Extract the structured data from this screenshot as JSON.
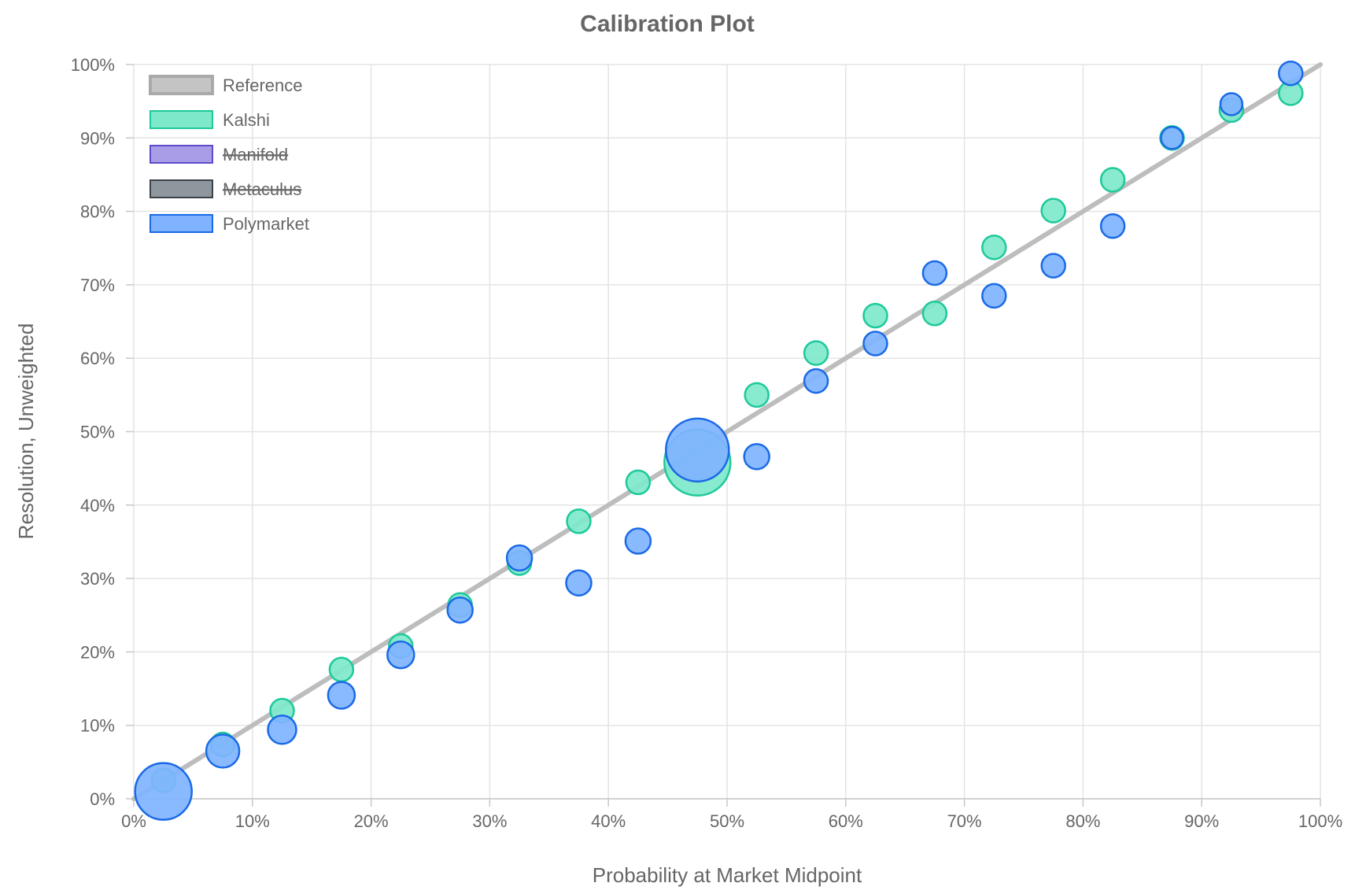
{
  "chart_data": {
    "type": "scatter",
    "title": "Calibration Plot",
    "xlabel": "Probability at Market Midpoint",
    "ylabel": "Resolution, Unweighted",
    "xlim": [
      0,
      100
    ],
    "ylim": [
      0,
      100
    ],
    "x_ticks": [
      "0%",
      "10%",
      "20%",
      "30%",
      "40%",
      "50%",
      "60%",
      "70%",
      "80%",
      "90%",
      "100%"
    ],
    "y_ticks": [
      "0%",
      "10%",
      "20%",
      "30%",
      "40%",
      "50%",
      "60%",
      "70%",
      "80%",
      "90%",
      "100%"
    ],
    "grid": true,
    "legend_position": "top-left",
    "legend": [
      {
        "name": "Reference",
        "fill": "#c4c4c4",
        "stroke": "#a9a9a9",
        "hidden": false
      },
      {
        "name": "Kalshi",
        "fill": "#7ee8cb",
        "stroke": "#1ec99a",
        "hidden": false
      },
      {
        "name": "Manifold",
        "fill": "#a99de8",
        "stroke": "#5b4ccc",
        "hidden": true
      },
      {
        "name": "Metaculus",
        "fill": "#8e969e",
        "stroke": "#3b424a",
        "hidden": true
      },
      {
        "name": "Polymarket",
        "fill": "#7fb3ff",
        "stroke": "#1a6ae6",
        "hidden": false
      }
    ],
    "reference": {
      "name": "Reference",
      "x": [
        0,
        100
      ],
      "y": [
        0,
        100
      ],
      "color": "#bdbdbd"
    },
    "series": [
      {
        "name": "Kalshi",
        "fill": "#7ee8cb",
        "stroke": "#1ec99a",
        "points": [
          {
            "x": 2.5,
            "y": 2.5,
            "r": 15
          },
          {
            "x": 7.5,
            "y": 7.4,
            "r": 15
          },
          {
            "x": 12.5,
            "y": 12.0,
            "r": 15
          },
          {
            "x": 17.5,
            "y": 17.6,
            "r": 15
          },
          {
            "x": 22.5,
            "y": 20.8,
            "r": 15
          },
          {
            "x": 27.5,
            "y": 26.4,
            "r": 15
          },
          {
            "x": 32.5,
            "y": 32.1,
            "r": 15
          },
          {
            "x": 37.5,
            "y": 37.8,
            "r": 15
          },
          {
            "x": 42.5,
            "y": 43.1,
            "r": 15
          },
          {
            "x": 47.5,
            "y": 45.8,
            "r": 42
          },
          {
            "x": 52.5,
            "y": 55.0,
            "r": 15
          },
          {
            "x": 57.5,
            "y": 60.7,
            "r": 15
          },
          {
            "x": 62.5,
            "y": 65.8,
            "r": 15
          },
          {
            "x": 67.5,
            "y": 66.1,
            "r": 15
          },
          {
            "x": 72.5,
            "y": 75.1,
            "r": 15
          },
          {
            "x": 77.5,
            "y": 80.1,
            "r": 15
          },
          {
            "x": 82.5,
            "y": 84.3,
            "r": 15
          },
          {
            "x": 87.5,
            "y": 90.0,
            "r": 15
          },
          {
            "x": 92.5,
            "y": 93.8,
            "r": 15
          },
          {
            "x": 97.5,
            "y": 96.1,
            "r": 15
          }
        ]
      },
      {
        "name": "Polymarket",
        "fill": "#7fb3ff",
        "stroke": "#1a6ae6",
        "points": [
          {
            "x": 2.5,
            "y": 1.0,
            "r": 36
          },
          {
            "x": 7.5,
            "y": 6.5,
            "r": 21
          },
          {
            "x": 12.5,
            "y": 9.4,
            "r": 18
          },
          {
            "x": 17.5,
            "y": 14.1,
            "r": 17
          },
          {
            "x": 22.5,
            "y": 19.6,
            "r": 17
          },
          {
            "x": 27.5,
            "y": 25.7,
            "r": 16
          },
          {
            "x": 32.5,
            "y": 32.8,
            "r": 16
          },
          {
            "x": 37.5,
            "y": 29.4,
            "r": 16
          },
          {
            "x": 42.5,
            "y": 35.1,
            "r": 16
          },
          {
            "x": 47.5,
            "y": 47.5,
            "r": 40
          },
          {
            "x": 52.5,
            "y": 46.6,
            "r": 16
          },
          {
            "x": 57.5,
            "y": 56.9,
            "r": 15
          },
          {
            "x": 62.5,
            "y": 62.0,
            "r": 15
          },
          {
            "x": 67.5,
            "y": 71.6,
            "r": 15
          },
          {
            "x": 72.5,
            "y": 68.5,
            "r": 15
          },
          {
            "x": 77.5,
            "y": 72.6,
            "r": 15
          },
          {
            "x": 82.5,
            "y": 78.0,
            "r": 15
          },
          {
            "x": 87.5,
            "y": 90.0,
            "r": 14
          },
          {
            "x": 92.5,
            "y": 94.6,
            "r": 14
          },
          {
            "x": 97.5,
            "y": 98.8,
            "r": 15
          }
        ]
      }
    ]
  }
}
